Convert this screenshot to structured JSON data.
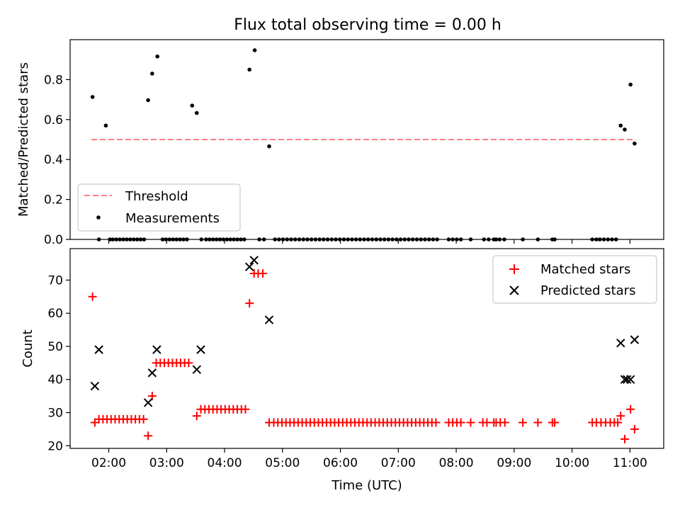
{
  "figure": {
    "title": "Flux total observing time = 0.00 h"
  },
  "colors": {
    "threshold": "#ff7f7f",
    "measurement": "#000000",
    "matched": "#ff0000",
    "predicted": "#000000"
  },
  "chart_data": [
    {
      "type": "scatter",
      "ylabel": "Matched/Predicted stars",
      "xlim": [
        1.333,
        11.583
      ],
      "ylim": [
        0.0,
        1.0
      ],
      "yticks": [
        0.0,
        0.2,
        0.4,
        0.6,
        0.8
      ],
      "ytick_labels": [
        "0.0",
        "0.2",
        "0.4",
        "0.6",
        "0.8"
      ],
      "grid": false,
      "legend_position": "lower-left",
      "threshold": {
        "name": "Threshold",
        "value": 0.5,
        "x_range": [
          1.7,
          11.1
        ]
      },
      "series": [
        {
          "name": "Measurements",
          "x": [
            1.72,
            1.83,
            1.95,
            2.02,
            2.07,
            2.13,
            2.19,
            2.25,
            2.31,
            2.37,
            2.43,
            2.49,
            2.55,
            2.61,
            2.68,
            2.75,
            2.84,
            2.93,
            2.99,
            3.05,
            3.11,
            3.17,
            3.23,
            3.29,
            3.35,
            3.44,
            3.52,
            3.6,
            3.68,
            3.74,
            3.8,
            3.86,
            3.92,
            3.98,
            4.04,
            4.1,
            4.16,
            4.22,
            4.28,
            4.34,
            4.43,
            4.52,
            4.6,
            4.68,
            4.77,
            4.87,
            4.94,
            5.01,
            5.08,
            5.15,
            5.22,
            5.29,
            5.36,
            5.43,
            5.5,
            5.57,
            5.64,
            5.71,
            5.78,
            5.85,
            5.92,
            5.99,
            6.06,
            6.13,
            6.2,
            6.27,
            6.34,
            6.41,
            6.48,
            6.55,
            6.62,
            6.69,
            6.76,
            6.83,
            6.9,
            6.97,
            7.04,
            7.11,
            7.18,
            7.25,
            7.32,
            7.39,
            7.46,
            7.53,
            7.6,
            7.67,
            7.87,
            7.94,
            8.01,
            8.08,
            8.25,
            8.48,
            8.56,
            8.65,
            8.69,
            8.75,
            8.83,
            9.15,
            9.41,
            9.66,
            9.7,
            10.35,
            10.42,
            10.48,
            10.55,
            10.62,
            10.69,
            10.76,
            10.84,
            10.91,
            11.01,
            11.08
          ],
          "y": [
            0.713,
            0.0,
            0.57,
            0.0,
            0.0,
            0.0,
            0.0,
            0.0,
            0.0,
            0.0,
            0.0,
            0.0,
            0.0,
            0.0,
            0.697,
            0.83,
            0.916,
            0.0,
            0.0,
            0.0,
            0.0,
            0.0,
            0.0,
            0.0,
            0.0,
            0.67,
            0.633,
            0.0,
            0.0,
            0.0,
            0.0,
            0.0,
            0.0,
            0.0,
            0.0,
            0.0,
            0.0,
            0.0,
            0.0,
            0.0,
            0.85,
            0.947,
            0.0,
            0.0,
            0.466,
            0.0,
            0.0,
            0.0,
            0.0,
            0.0,
            0.0,
            0.0,
            0.0,
            0.0,
            0.0,
            0.0,
            0.0,
            0.0,
            0.0,
            0.0,
            0.0,
            0.0,
            0.0,
            0.0,
            0.0,
            0.0,
            0.0,
            0.0,
            0.0,
            0.0,
            0.0,
            0.0,
            0.0,
            0.0,
            0.0,
            0.0,
            0.0,
            0.0,
            0.0,
            0.0,
            0.0,
            0.0,
            0.0,
            0.0,
            0.0,
            0.0,
            0.0,
            0.0,
            0.0,
            0.0,
            0.0,
            0.0,
            0.0,
            0.0,
            0.0,
            0.0,
            0.0,
            0.0,
            0.0,
            0.0,
            0.0,
            0.0,
            0.0,
            0.0,
            0.0,
            0.0,
            0.0,
            0.0,
            0.57,
            0.55,
            0.775,
            0.48
          ]
        }
      ]
    },
    {
      "type": "scatter",
      "xlabel": "Time (UTC)",
      "ylabel": "Count",
      "xlim": [
        1.333,
        11.583
      ],
      "ylim": [
        19.2,
        79.5
      ],
      "xticks": [
        2,
        3,
        4,
        5,
        6,
        7,
        8,
        9,
        10,
        11
      ],
      "xtick_labels": [
        "02:00",
        "03:00",
        "04:00",
        "05:00",
        "06:00",
        "07:00",
        "08:00",
        "09:00",
        "10:00",
        "11:00"
      ],
      "yticks": [
        20,
        30,
        40,
        50,
        60,
        70
      ],
      "ytick_labels": [
        "20",
        "30",
        "40",
        "50",
        "60",
        "70"
      ],
      "grid": false,
      "legend_position": "top-right",
      "series": [
        {
          "name": "Matched stars",
          "marker": "+",
          "x": [
            1.72,
            1.76,
            1.83,
            1.9,
            1.97,
            2.04,
            2.11,
            2.18,
            2.25,
            2.32,
            2.39,
            2.46,
            2.53,
            2.6,
            2.68,
            2.75,
            2.82,
            2.89,
            2.96,
            3.03,
            3.1,
            3.17,
            3.24,
            3.31,
            3.38,
            3.52,
            3.59,
            3.66,
            3.73,
            3.8,
            3.87,
            3.94,
            4.01,
            4.08,
            4.15,
            4.22,
            4.29,
            4.36,
            4.43,
            4.51,
            4.58,
            4.66,
            4.77,
            4.85,
            4.92,
            4.99,
            5.06,
            5.13,
            5.2,
            5.27,
            5.34,
            5.41,
            5.48,
            5.55,
            5.62,
            5.69,
            5.76,
            5.83,
            5.9,
            5.97,
            6.04,
            6.11,
            6.18,
            6.25,
            6.32,
            6.39,
            6.46,
            6.53,
            6.6,
            6.67,
            6.74,
            6.81,
            6.88,
            6.95,
            7.02,
            7.09,
            7.16,
            7.23,
            7.3,
            7.37,
            7.44,
            7.51,
            7.58,
            7.65,
            7.87,
            7.94,
            8.01,
            8.08,
            8.25,
            8.46,
            8.53,
            8.65,
            8.69,
            8.76,
            8.84,
            9.15,
            9.41,
            9.66,
            9.7,
            10.35,
            10.42,
            10.5,
            10.58,
            10.66,
            10.73,
            10.79,
            10.84,
            10.91,
            11.01,
            11.08
          ],
          "y": [
            65,
            27,
            28,
            28,
            28,
            28,
            28,
            28,
            28,
            28,
            28,
            28,
            28,
            28,
            23,
            35,
            45,
            45,
            45,
            45,
            45,
            45,
            45,
            45,
            45,
            29,
            31,
            31,
            31,
            31,
            31,
            31,
            31,
            31,
            31,
            31,
            31,
            31,
            63,
            72,
            72,
            72,
            27,
            27,
            27,
            27,
            27,
            27,
            27,
            27,
            27,
            27,
            27,
            27,
            27,
            27,
            27,
            27,
            27,
            27,
            27,
            27,
            27,
            27,
            27,
            27,
            27,
            27,
            27,
            27,
            27,
            27,
            27,
            27,
            27,
            27,
            27,
            27,
            27,
            27,
            27,
            27,
            27,
            27,
            27,
            27,
            27,
            27,
            27,
            27,
            27,
            27,
            27,
            27,
            27,
            27,
            27,
            27,
            27,
            27,
            27,
            27,
            27,
            27,
            27,
            27,
            29,
            22,
            31,
            25
          ]
        },
        {
          "name": "Predicted stars",
          "marker": "x",
          "x": [
            1.76,
            1.83,
            2.68,
            2.75,
            2.83,
            3.52,
            3.59,
            4.43,
            4.51,
            4.77,
            10.84,
            10.91,
            10.95,
            11.01,
            11.08
          ],
          "y": [
            38,
            49,
            33,
            42,
            49,
            43,
            49,
            74,
            76,
            58,
            51,
            40,
            40,
            40,
            52
          ]
        }
      ]
    }
  ]
}
